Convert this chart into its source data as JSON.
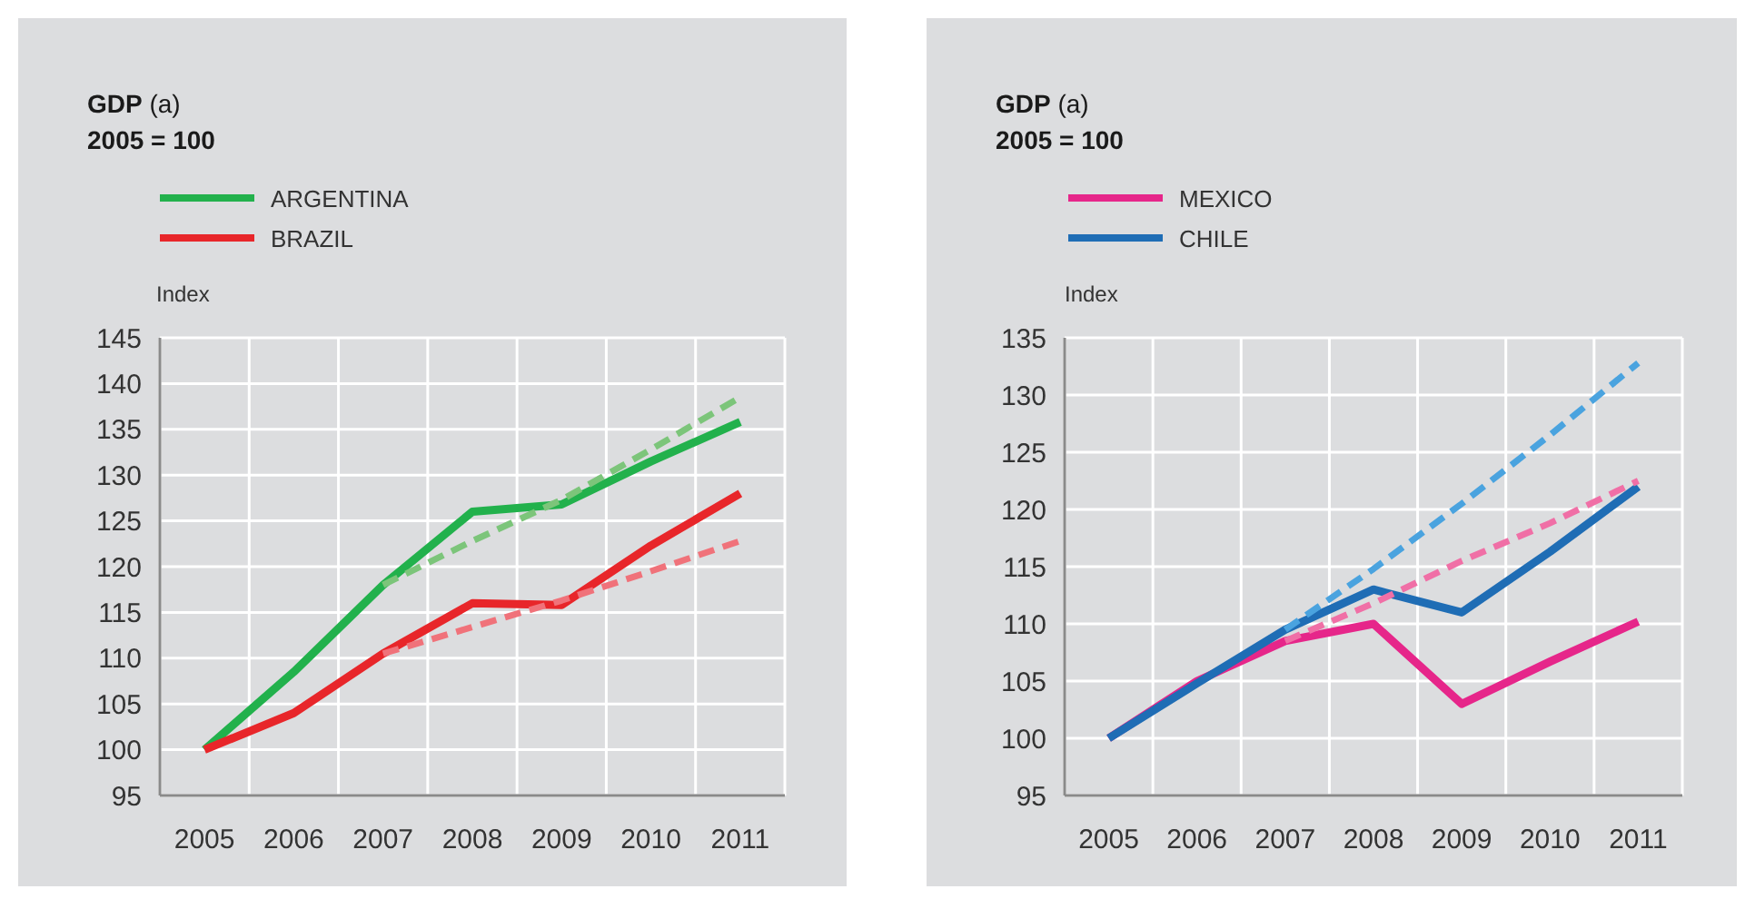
{
  "chart_data": [
    {
      "type": "line",
      "title": "GDP (a)",
      "subtitle": "2005 = 100",
      "ylabel": "Index",
      "categories": [
        "2005",
        "2006",
        "2007",
        "2008",
        "2009",
        "2010",
        "2011"
      ],
      "ylim": [
        95,
        145
      ],
      "yticks": [
        95,
        100,
        105,
        110,
        115,
        120,
        125,
        130,
        135,
        140,
        145
      ],
      "grid": true,
      "legend": "top left",
      "marker": "none",
      "series": [
        {
          "name": "ARGENTINA",
          "color": "#22b14c",
          "values": [
            100,
            108.5,
            118,
            126,
            126.8,
            131.5,
            135.8
          ]
        },
        {
          "name": "BRAZIL",
          "color": "#e8262a",
          "values": [
            100,
            104,
            110.5,
            116,
            115.8,
            122.3,
            128
          ]
        },
        {
          "color": "#7cc57a",
          "line_style": "dashed",
          "values": [
            null,
            null,
            118,
            122.8,
            127.3,
            132.8,
            138.5
          ]
        },
        {
          "color": "#f0727a",
          "line_style": "dashed",
          "values": [
            null,
            null,
            110.5,
            113.4,
            116.3,
            119.5,
            122.8
          ]
        }
      ]
    },
    {
      "type": "line",
      "title": "GDP (a)",
      "subtitle": "2005 = 100",
      "ylabel": "Index",
      "categories": [
        "2005",
        "2006",
        "2007",
        "2008",
        "2009",
        "2010",
        "2011"
      ],
      "ylim": [
        95,
        135
      ],
      "yticks": [
        95,
        100,
        105,
        110,
        115,
        120,
        125,
        130,
        135
      ],
      "grid": true,
      "legend": "top left",
      "marker": "none",
      "series": [
        {
          "name": "MEXICO",
          "color": "#e6268a",
          "values": [
            100,
            105,
            108.5,
            110,
            103,
            106.7,
            110.2
          ]
        },
        {
          "name": "CHILE",
          "color": "#1f6db5",
          "values": [
            100,
            104.8,
            109.5,
            113,
            111,
            116.3,
            122
          ]
        },
        {
          "color": "#4aa3df",
          "line_style": "dashed",
          "values": [
            null,
            null,
            109.5,
            114.8,
            120.5,
            126.5,
            132.8
          ]
        },
        {
          "color": "#f06fa6",
          "line_style": "dashed",
          "values": [
            null,
            null,
            108.5,
            111.8,
            115.5,
            118.8,
            122.5
          ]
        }
      ]
    }
  ]
}
